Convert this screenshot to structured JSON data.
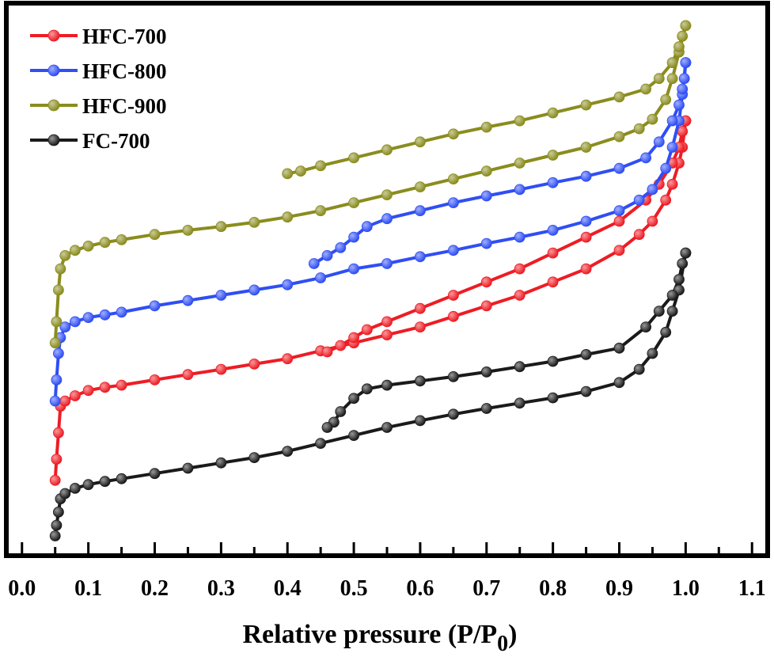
{
  "chart_data": {
    "type": "line",
    "xlabel": "Relative pressure (P/P",
    "xlabel_subscript": "0",
    "xlabel_suffix": ")",
    "ylabel": "",
    "xlim": [
      -0.02,
      1.12
    ],
    "ylim": [
      0,
      100
    ],
    "x_ticks": [
      0.0,
      0.1,
      0.2,
      0.3,
      0.4,
      0.5,
      0.6,
      0.7,
      0.8,
      0.9,
      1.0,
      1.1
    ],
    "x_tick_labels": [
      "0.0",
      "0.1",
      "0.2",
      "0.3",
      "0.4",
      "0.5",
      "0.6",
      "0.7",
      "0.8",
      "0.9",
      "1.0",
      "1.1"
    ],
    "grid": false,
    "legend_position": "top-left",
    "series": [
      {
        "name": "HFC-700",
        "color": "#ee1c24",
        "adsorption": [
          [
            0.05,
            12
          ],
          [
            0.052,
            16
          ],
          [
            0.055,
            21
          ],
          [
            0.058,
            26
          ],
          [
            0.065,
            27
          ],
          [
            0.08,
            28
          ],
          [
            0.1,
            29
          ],
          [
            0.125,
            29.6
          ],
          [
            0.15,
            30
          ],
          [
            0.2,
            31
          ],
          [
            0.25,
            32
          ],
          [
            0.3,
            33
          ],
          [
            0.35,
            34
          ],
          [
            0.4,
            35
          ],
          [
            0.45,
            36.5
          ],
          [
            0.5,
            38
          ],
          [
            0.55,
            39.5
          ],
          [
            0.6,
            41
          ],
          [
            0.65,
            43
          ],
          [
            0.7,
            45
          ],
          [
            0.75,
            47
          ],
          [
            0.8,
            49.5
          ],
          [
            0.85,
            52
          ],
          [
            0.9,
            55.5
          ],
          [
            0.93,
            58.5
          ],
          [
            0.95,
            61
          ],
          [
            0.97,
            65
          ],
          [
            0.98,
            68
          ],
          [
            0.99,
            72
          ],
          [
            0.995,
            75
          ],
          [
            1.0,
            80
          ]
        ],
        "desorption": [
          [
            1.0,
            80
          ],
          [
            0.995,
            78
          ],
          [
            0.99,
            75
          ],
          [
            0.98,
            72
          ],
          [
            0.96,
            68
          ],
          [
            0.94,
            65
          ],
          [
            0.9,
            61
          ],
          [
            0.85,
            58
          ],
          [
            0.8,
            55
          ],
          [
            0.75,
            52
          ],
          [
            0.7,
            49.5
          ],
          [
            0.65,
            47
          ],
          [
            0.6,
            44.5
          ],
          [
            0.55,
            42
          ],
          [
            0.52,
            40.5
          ],
          [
            0.5,
            39
          ],
          [
            0.48,
            37.5
          ],
          [
            0.46,
            36.3
          ]
        ]
      },
      {
        "name": "HFC-800",
        "color": "#2f4ef4",
        "adsorption": [
          [
            0.05,
            27
          ],
          [
            0.052,
            31
          ],
          [
            0.055,
            36
          ],
          [
            0.058,
            39
          ],
          [
            0.065,
            41
          ],
          [
            0.08,
            42
          ],
          [
            0.1,
            42.8
          ],
          [
            0.125,
            43.3
          ],
          [
            0.15,
            43.8
          ],
          [
            0.2,
            45
          ],
          [
            0.25,
            46
          ],
          [
            0.3,
            47
          ],
          [
            0.35,
            48
          ],
          [
            0.4,
            49
          ],
          [
            0.45,
            50.3
          ],
          [
            0.5,
            52
          ],
          [
            0.55,
            53
          ],
          [
            0.6,
            54.3
          ],
          [
            0.65,
            55.5
          ],
          [
            0.7,
            56.8
          ],
          [
            0.75,
            58
          ],
          [
            0.8,
            59.3
          ],
          [
            0.85,
            61
          ],
          [
            0.9,
            63
          ],
          [
            0.93,
            65
          ],
          [
            0.95,
            67
          ],
          [
            0.97,
            71
          ],
          [
            0.98,
            75
          ],
          [
            0.99,
            80
          ],
          [
            0.995,
            85
          ],
          [
            1.0,
            91
          ]
        ],
        "desorption": [
          [
            1.0,
            91
          ],
          [
            0.998,
            88
          ],
          [
            0.995,
            86
          ],
          [
            0.99,
            83
          ],
          [
            0.98,
            80
          ],
          [
            0.96,
            76
          ],
          [
            0.94,
            73
          ],
          [
            0.9,
            71
          ],
          [
            0.85,
            69.5
          ],
          [
            0.8,
            68.3
          ],
          [
            0.75,
            67
          ],
          [
            0.7,
            65.8
          ],
          [
            0.65,
            64.5
          ],
          [
            0.6,
            63
          ],
          [
            0.55,
            61.5
          ],
          [
            0.52,
            60
          ],
          [
            0.5,
            58
          ],
          [
            0.48,
            56
          ],
          [
            0.46,
            54.5
          ],
          [
            0.44,
            53
          ]
        ]
      },
      {
        "name": "HFC-900",
        "color": "#8a8c1e",
        "adsorption": [
          [
            0.05,
            38
          ],
          [
            0.052,
            42
          ],
          [
            0.055,
            48
          ],
          [
            0.058,
            52
          ],
          [
            0.065,
            54.5
          ],
          [
            0.08,
            55.5
          ],
          [
            0.1,
            56.3
          ],
          [
            0.125,
            57
          ],
          [
            0.15,
            57.5
          ],
          [
            0.2,
            58.5
          ],
          [
            0.25,
            59.3
          ],
          [
            0.3,
            60
          ],
          [
            0.35,
            60.8
          ],
          [
            0.4,
            61.8
          ],
          [
            0.45,
            63
          ],
          [
            0.5,
            64.5
          ],
          [
            0.55,
            66
          ],
          [
            0.6,
            67.5
          ],
          [
            0.65,
            69
          ],
          [
            0.7,
            70.5
          ],
          [
            0.75,
            72
          ],
          [
            0.8,
            73.5
          ],
          [
            0.85,
            75
          ],
          [
            0.9,
            77
          ],
          [
            0.93,
            78.5
          ],
          [
            0.95,
            80.3
          ],
          [
            0.97,
            84
          ],
          [
            0.98,
            88
          ],
          [
            0.99,
            93
          ],
          [
            1.0,
            98
          ]
        ],
        "desorption": [
          [
            1.0,
            98
          ],
          [
            0.995,
            96
          ],
          [
            0.99,
            94
          ],
          [
            0.98,
            91
          ],
          [
            0.96,
            88
          ],
          [
            0.94,
            86
          ],
          [
            0.9,
            84.5
          ],
          [
            0.85,
            83
          ],
          [
            0.8,
            81.5
          ],
          [
            0.75,
            80
          ],
          [
            0.7,
            78.8
          ],
          [
            0.65,
            77.5
          ],
          [
            0.6,
            76
          ],
          [
            0.55,
            74.5
          ],
          [
            0.5,
            73
          ],
          [
            0.45,
            71.5
          ],
          [
            0.42,
            70.5
          ],
          [
            0.4,
            70
          ]
        ]
      },
      {
        "name": "FC-700",
        "color": "#1a1a1a",
        "adsorption": [
          [
            0.05,
            1.5
          ],
          [
            0.052,
            3.5
          ],
          [
            0.055,
            6
          ],
          [
            0.058,
            8.5
          ],
          [
            0.065,
            9.5
          ],
          [
            0.08,
            10.5
          ],
          [
            0.1,
            11.2
          ],
          [
            0.125,
            11.8
          ],
          [
            0.15,
            12.3
          ],
          [
            0.2,
            13.3
          ],
          [
            0.25,
            14.3
          ],
          [
            0.3,
            15.3
          ],
          [
            0.35,
            16.3
          ],
          [
            0.4,
            17.5
          ],
          [
            0.45,
            19
          ],
          [
            0.5,
            20.5
          ],
          [
            0.55,
            22
          ],
          [
            0.6,
            23.3
          ],
          [
            0.65,
            24.5
          ],
          [
            0.7,
            25.6
          ],
          [
            0.75,
            26.6
          ],
          [
            0.8,
            27.6
          ],
          [
            0.85,
            28.8
          ],
          [
            0.9,
            30.5
          ],
          [
            0.93,
            33
          ],
          [
            0.95,
            36
          ],
          [
            0.97,
            40
          ],
          [
            0.98,
            44
          ],
          [
            0.99,
            48
          ],
          [
            1.0,
            55
          ]
        ],
        "desorption": [
          [
            1.0,
            55
          ],
          [
            0.995,
            53
          ],
          [
            0.99,
            50
          ],
          [
            0.98,
            47
          ],
          [
            0.96,
            44
          ],
          [
            0.94,
            41
          ],
          [
            0.9,
            37
          ],
          [
            0.85,
            35.8
          ],
          [
            0.8,
            34.5
          ],
          [
            0.75,
            33.5
          ],
          [
            0.7,
            32.5
          ],
          [
            0.65,
            31.6
          ],
          [
            0.6,
            30.8
          ],
          [
            0.55,
            30
          ],
          [
            0.52,
            29.3
          ],
          [
            0.5,
            27.5
          ],
          [
            0.48,
            25
          ],
          [
            0.47,
            23
          ],
          [
            0.46,
            22
          ]
        ]
      }
    ]
  }
}
